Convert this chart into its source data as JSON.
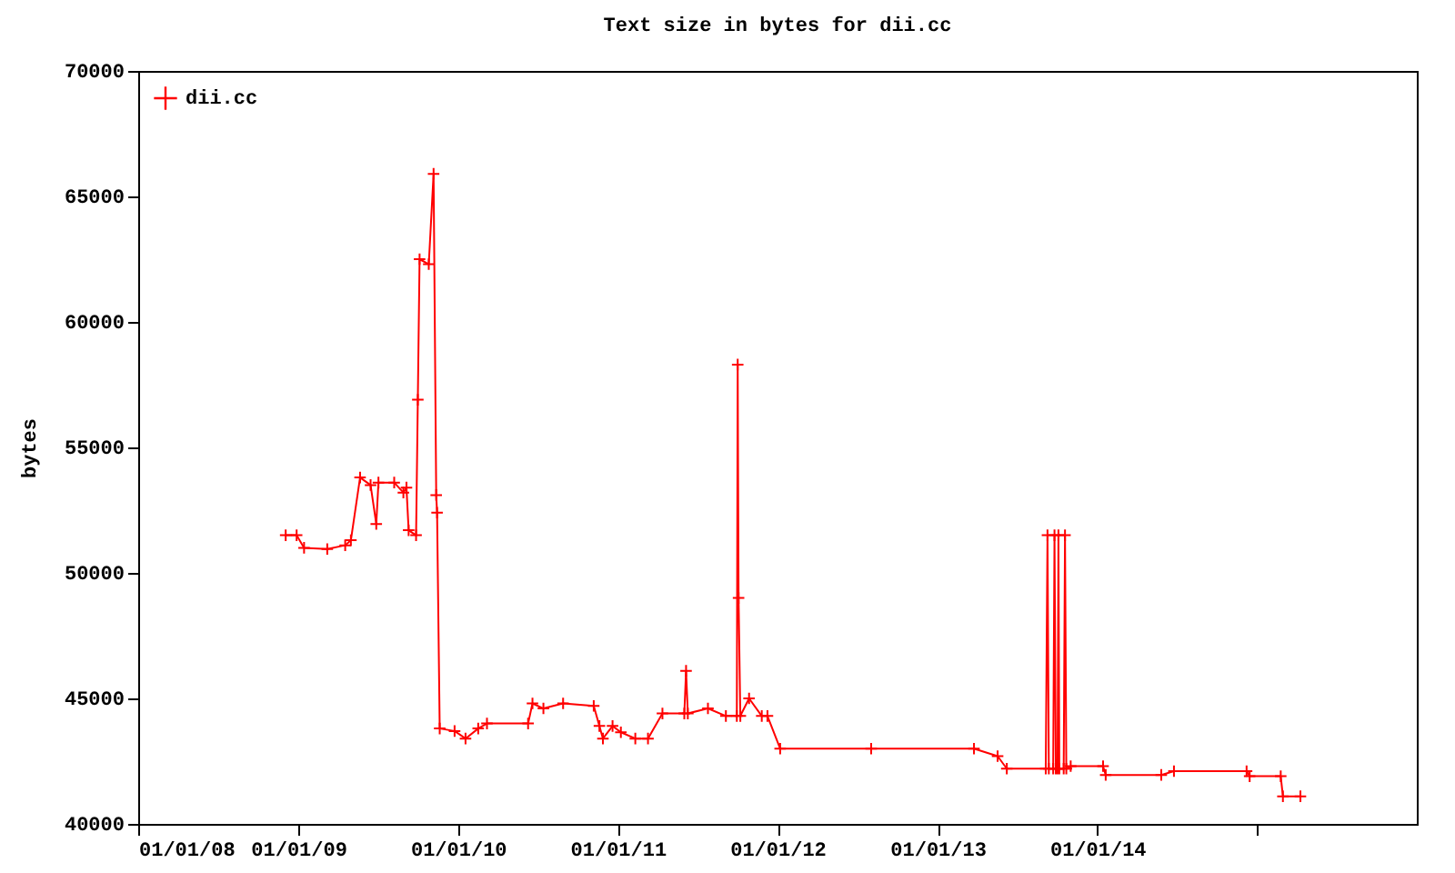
{
  "chart_data": {
    "type": "line",
    "title": "Text size in bytes for dii.cc",
    "ylabel": "bytes",
    "marker": "cross",
    "legend": "top left",
    "grid": false,
    "xlim": [
      "2008-01-01",
      "2016-01-01"
    ],
    "xticks": [
      {
        "value": "2008-01-01",
        "label": "01/01/08"
      },
      {
        "value": "2009-01-01",
        "label": "01/01/09"
      },
      {
        "value": "2010-01-01",
        "label": "01/01/10"
      },
      {
        "value": "2011-01-01",
        "label": "01/01/11"
      },
      {
        "value": "2012-01-01",
        "label": "01/01/12"
      },
      {
        "value": "2013-01-01",
        "label": "01/01/13"
      },
      {
        "value": "2014-01-01",
        "label": "01/01/14"
      },
      {
        "value": "2015-01-01",
        "label": null
      }
    ],
    "ylim": [
      40000,
      70000
    ],
    "yticks": [
      40000,
      45000,
      50000,
      55000,
      60000,
      65000,
      70000
    ],
    "x": [
      "2008-12-03",
      "2008-12-28",
      "2009-01-14",
      "2009-03-08",
      "2009-04-18",
      "2009-05-01",
      "2009-05-22",
      "2009-06-15",
      "2009-06-28",
      "2009-07-03",
      "2009-08-08",
      "2009-08-29",
      "2009-09-05",
      "2009-09-10",
      "2009-09-27",
      "2009-10-01",
      "2009-10-05",
      "2009-10-26",
      "2009-11-06",
      "2009-11-12",
      "2009-11-14",
      "2009-11-20",
      "2009-12-24",
      "2010-01-18",
      "2010-02-16",
      "2010-03-08",
      "2010-06-10",
      "2010-06-20",
      "2010-07-15",
      "2010-08-29",
      "2010-11-07",
      "2010-11-20",
      "2010-11-28",
      "2010-12-20",
      "2011-01-08",
      "2011-02-10",
      "2011-03-11",
      "2011-04-13",
      "2011-06-02",
      "2011-06-06",
      "2011-06-10",
      "2011-07-26",
      "2011-09-05",
      "2011-09-30",
      "2011-10-02",
      "2011-10-04",
      "2011-10-08",
      "2011-10-28",
      "2011-11-26",
      "2011-12-09",
      "2012-01-07",
      "2012-08-02",
      "2013-03-25",
      "2013-05-18",
      "2013-06-08",
      "2013-09-05",
      "2013-09-09",
      "2013-09-12",
      "2013-09-22",
      "2013-09-25",
      "2013-09-28",
      "2013-10-02",
      "2013-10-04",
      "2013-10-06",
      "2013-10-16",
      "2013-10-19",
      "2013-10-22",
      "2013-11-01",
      "2014-01-14",
      "2014-01-20",
      "2014-05-27",
      "2014-06-25",
      "2014-12-08",
      "2014-12-15",
      "2015-02-24",
      "2015-03-01",
      "2015-04-10"
    ],
    "series": [
      {
        "name": "dii.cc",
        "color": "#ff0000",
        "values": [
          51500,
          51500,
          51000,
          50950,
          51100,
          51300,
          53800,
          53500,
          51950,
          53600,
          53600,
          53200,
          53400,
          51700,
          51500,
          56900,
          62500,
          62300,
          65900,
          53100,
          52400,
          43800,
          43700,
          43400,
          43800,
          44000,
          44000,
          44800,
          44600,
          44800,
          44700,
          43900,
          43400,
          43900,
          43650,
          43400,
          43400,
          44400,
          44400,
          46100,
          44400,
          44600,
          44300,
          44300,
          58300,
          49000,
          44300,
          45000,
          44300,
          44300,
          43000,
          43000,
          43000,
          42700,
          42200,
          42200,
          51500,
          42200,
          42200,
          51500,
          42200,
          42200,
          51500,
          42200,
          42200,
          51500,
          42200,
          42300,
          42300,
          41950,
          41950,
          42100,
          42100,
          41900,
          41900,
          41100,
          41100
        ]
      }
    ]
  }
}
